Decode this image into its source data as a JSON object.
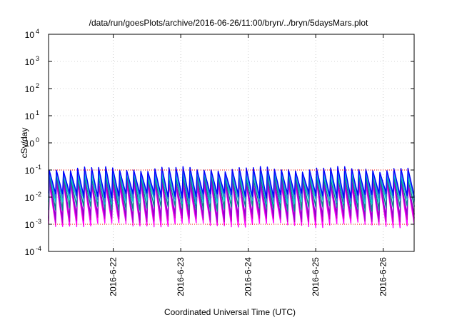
{
  "chart_data": {
    "type": "line",
    "title": "/data/run/goesPlots/archive/2016-06-26/11:00/bryn/../bryn/5daysMars.plot",
    "xlabel": "Coordinated Universal Time (UTC)",
    "ylabel": "cSv/day",
    "yscale": "log",
    "ylim": [
      0.0001,
      10000
    ],
    "xlim": [
      "2016-06-21 01:00",
      "2016-06-26 11:00"
    ],
    "x_ticks": [
      "2016-6-22",
      "2016-6-23",
      "2016-6-24",
      "2016-6-25",
      "2016-6-26"
    ],
    "y_ticks": [
      {
        "base": "10",
        "exp": "-4",
        "value": 0.0001
      },
      {
        "base": "10",
        "exp": "-3",
        "value": 0.001
      },
      {
        "base": "10",
        "exp": "-2",
        "value": 0.01
      },
      {
        "base": "10",
        "exp": "-1",
        "value": 0.1
      },
      {
        "base": "10",
        "exp": "0",
        "value": 1
      },
      {
        "base": "10",
        "exp": "1",
        "value": 10
      },
      {
        "base": "10",
        "exp": "2",
        "value": 100
      },
      {
        "base": "10",
        "exp": "3",
        "value": 1000
      },
      {
        "base": "10",
        "exp": "4",
        "value": 10000
      }
    ],
    "grid": true,
    "reference_lines": [
      {
        "value": 0.1,
        "color": "#ff0000",
        "style": "dotted"
      },
      {
        "value": 0.001,
        "color": "#ff0000",
        "style": "dotted"
      }
    ],
    "pattern": {
      "description": "sawtooth cycles repeating about every 2.5 hours across all series",
      "cycle_hours": 2.5,
      "x_start": "2016-06-21 01:00"
    },
    "series": [
      {
        "color": "#ff00ff",
        "peak": 0.03,
        "trough": 0.001
      },
      {
        "color": "#c000c0",
        "peak": 0.035,
        "trough": 0.0015
      },
      {
        "color": "#9400d3",
        "peak": 0.045,
        "trough": 0.002
      },
      {
        "color": "#008b8b",
        "peak": 0.06,
        "trough": 0.004
      },
      {
        "color": "#00ced1",
        "peak": 0.08,
        "trough": 0.007
      },
      {
        "color": "#4169e1",
        "peak": 0.1,
        "trough": 0.009
      },
      {
        "color": "#0000ff",
        "peak": 0.11,
        "trough": 0.012
      }
    ]
  }
}
